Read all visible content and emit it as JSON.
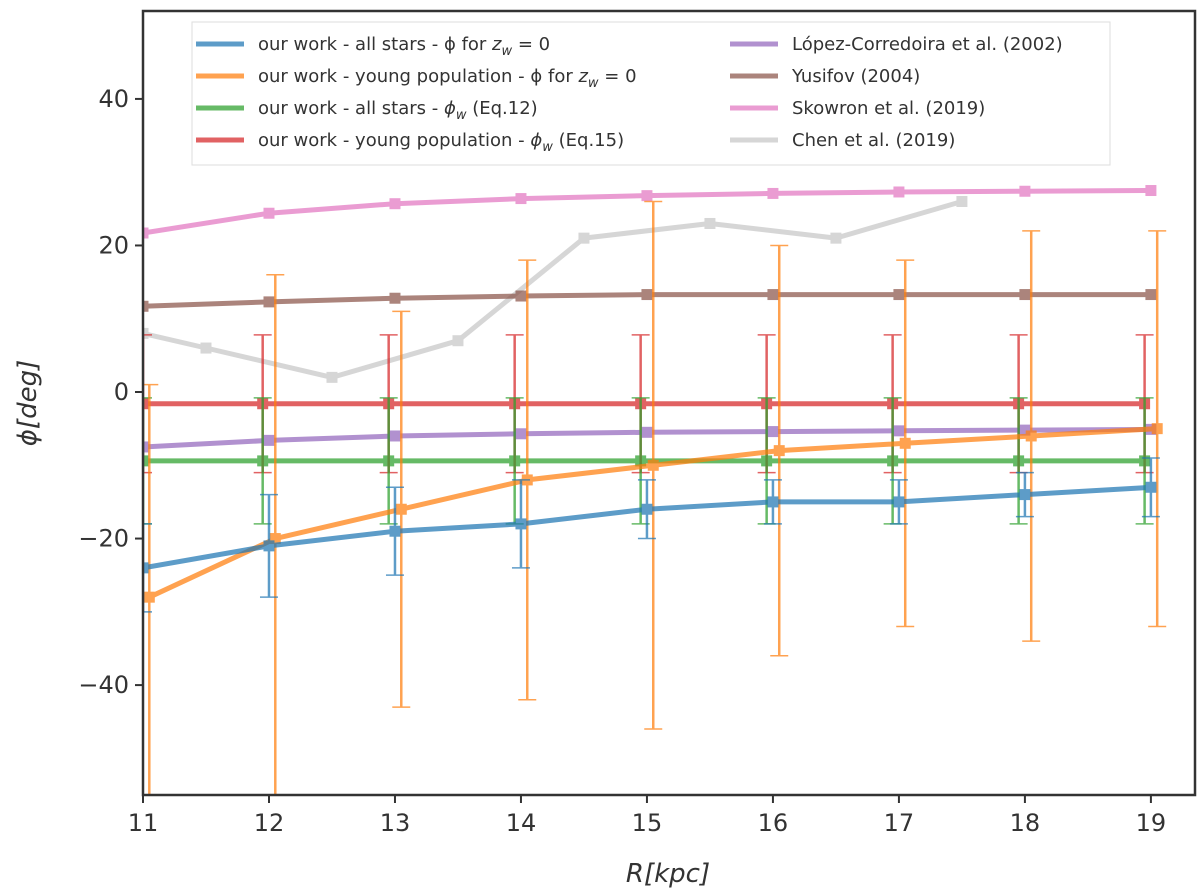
{
  "chart_data": {
    "type": "line",
    "title": "",
    "xlabel": "R[kpc]",
    "ylabel": "ϕ[deg]",
    "xlim": [
      11,
      19.35
    ],
    "ylim": [
      -55,
      52
    ],
    "xticks": [
      11,
      12,
      13,
      14,
      15,
      16,
      17,
      18,
      19
    ],
    "yticks": [
      -40,
      -20,
      0,
      20,
      40
    ],
    "xtick_labels": [
      "11",
      "12",
      "13",
      "14",
      "15",
      "16",
      "17",
      "18",
      "19"
    ],
    "ytick_labels": [
      "−40",
      "−20",
      "0",
      "20",
      "40"
    ],
    "grid": false,
    "legend_position": "top",
    "series": [
      {
        "name": "our work - all stars -  ϕ for z_w = 0",
        "legend_label": "our work - all stars -  ϕ for",
        "legend_math": "z",
        "legend_sub": "w",
        "legend_tail": " = 0",
        "color": "#1f77b4",
        "x": [
          11,
          12,
          13,
          14,
          15,
          16,
          17,
          18,
          19
        ],
        "y": [
          -24,
          -21,
          -19,
          -18,
          -16,
          -15,
          -15,
          -14,
          -13
        ],
        "err": [
          6,
          7,
          6,
          6,
          4,
          3,
          3,
          3,
          4
        ]
      },
      {
        "name": "our work - young population -  ϕ for z_w = 0",
        "legend_label": "our work - young population -  ϕ for",
        "legend_math": "z",
        "legend_sub": "w",
        "legend_tail": " = 0",
        "color": "#ff7f0e",
        "x": [
          11.05,
          12.05,
          13.05,
          14.05,
          15.05,
          16.05,
          17.05,
          18.05,
          19.05
        ],
        "y": [
          -28,
          -20,
          -16,
          -12,
          -10,
          -8,
          -7,
          -6,
          -5
        ],
        "err": [
          29,
          36,
          27,
          30,
          36,
          28,
          25,
          28,
          27
        ]
      },
      {
        "name": "our work - all stars - ϕ_w (Eq.12)",
        "legend_label": "our work - all stars -",
        "legend_math": "ϕ",
        "legend_sub": "w",
        "legend_tail": " (Eq.12)",
        "color": "#2ca02c",
        "x": [
          11,
          11.95,
          12.95,
          13.95,
          14.95,
          15.95,
          16.95,
          17.95,
          18.95
        ],
        "y": [
          -9.4,
          -9.4,
          -9.4,
          -9.4,
          -9.4,
          -9.4,
          -9.4,
          -9.4,
          -9.4
        ],
        "err": [
          8.6,
          8.6,
          8.6,
          8.6,
          8.6,
          8.6,
          8.6,
          8.6,
          8.6
        ]
      },
      {
        "name": "our work - young population - ϕ_w (Eq.15)",
        "legend_label": "our work - young population -",
        "legend_math": "ϕ",
        "legend_sub": "w",
        "legend_tail": " (Eq.15)",
        "color": "#d62728",
        "x": [
          11,
          11.95,
          12.95,
          13.95,
          14.95,
          15.95,
          16.95,
          17.95,
          18.95
        ],
        "y": [
          -1.6,
          -1.6,
          -1.6,
          -1.6,
          -1.6,
          -1.6,
          -1.6,
          -1.6,
          -1.6
        ],
        "err": [
          9.4,
          9.4,
          9.4,
          9.4,
          9.4,
          9.4,
          9.4,
          9.4,
          9.4
        ]
      },
      {
        "name": "López-Corredoira et al. (2002)",
        "legend_label": "López-Corredoira et al. (2002)",
        "color": "#9467bd",
        "x": [
          11,
          12,
          13,
          14,
          15,
          16,
          17,
          18,
          19
        ],
        "y": [
          -7.5,
          -6.6,
          -6.0,
          -5.7,
          -5.5,
          -5.4,
          -5.3,
          -5.2,
          -5.1
        ]
      },
      {
        "name": "Yusifov (2004)",
        "legend_label": "Yusifov (2004)",
        "color": "#8c564b",
        "x": [
          11,
          12,
          13,
          14,
          15,
          16,
          17,
          18,
          19
        ],
        "y": [
          11.7,
          12.3,
          12.8,
          13.1,
          13.3,
          13.3,
          13.3,
          13.3,
          13.3
        ]
      },
      {
        "name": "Skowron et al. (2019)",
        "legend_label": "Skowron et al. (2019)",
        "color": "#e377c2",
        "x": [
          11,
          12,
          13,
          14,
          15,
          16,
          17,
          18,
          19
        ],
        "y": [
          21.7,
          24.4,
          25.7,
          26.4,
          26.8,
          27.1,
          27.3,
          27.4,
          27.5
        ]
      },
      {
        "name": "Chen et al. (2019)",
        "legend_label": "Chen et al. (2019)",
        "color": "#c7c7c7",
        "x": [
          11,
          11.5,
          12.5,
          13.5,
          14.5,
          15.5,
          16.5,
          17.5
        ],
        "y": [
          8,
          6,
          2,
          7,
          21,
          23,
          21,
          26
        ]
      }
    ]
  }
}
